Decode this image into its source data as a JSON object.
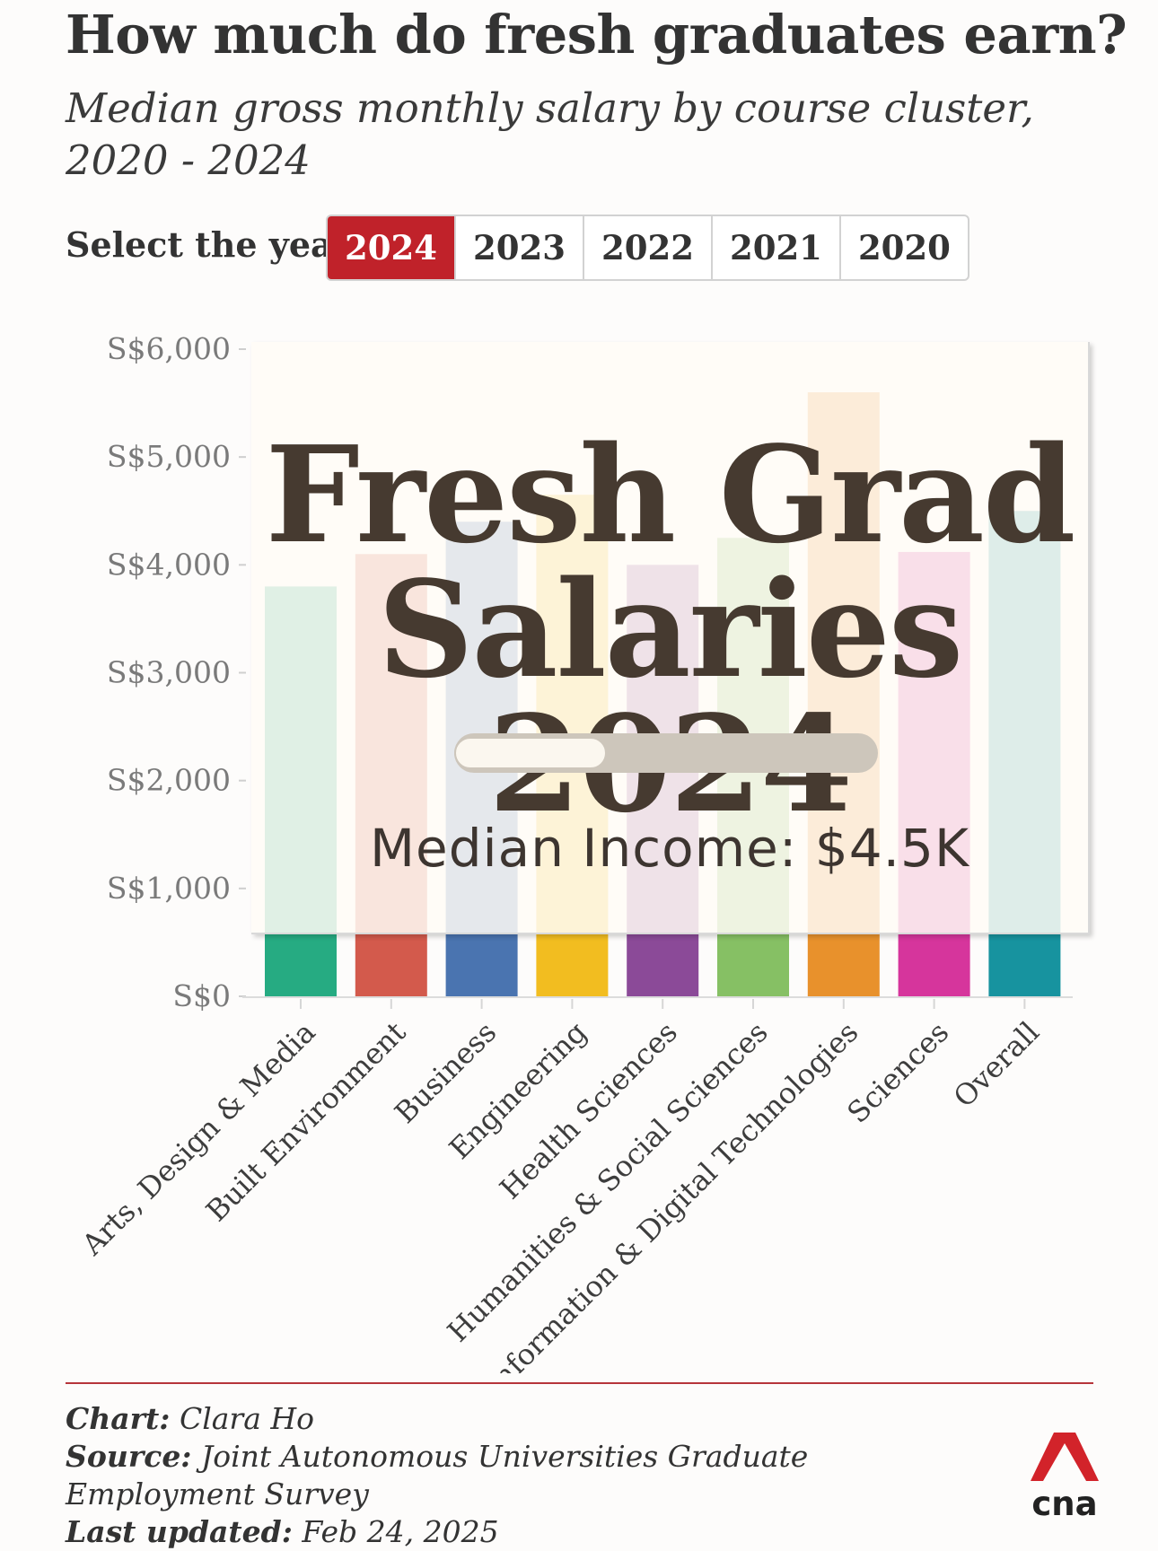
{
  "header": {
    "title": "How much do fresh graduates earn?",
    "subtitle": "Median gross monthly salary by course cluster, 2020 - 2024"
  },
  "year_selector": {
    "label": "Select the year:",
    "options": [
      "2024",
      "2023",
      "2022",
      "2021",
      "2020"
    ],
    "selected": "2024",
    "active_color": "#c0222a"
  },
  "chart_data": {
    "type": "bar",
    "categories": [
      "Arts, Design & Media",
      "Built Environment",
      "Business",
      "Engineering",
      "Health Sciences",
      "Humanities & Social Sciences",
      "Information & Digital Technologies",
      "Sciences",
      "Overall"
    ],
    "values": [
      3800,
      4100,
      4400,
      4650,
      4000,
      4250,
      5600,
      4120,
      4500
    ],
    "colors": [
      "#26ab82",
      "#d35a4c",
      "#4a74b0",
      "#f2bd20",
      "#8b4a98",
      "#86c064",
      "#e8912c",
      "#d6359c",
      "#17939f"
    ],
    "y_ticks": [
      "S$0",
      "S$1,000",
      "S$2,000",
      "S$3,000",
      "S$4,000",
      "S$5,000",
      "S$6,000"
    ],
    "ylim": [
      0,
      6000
    ],
    "grid": false
  },
  "overlay": {
    "title_line1": "Fresh Grad",
    "title_line2": "Salaries 2024",
    "progress": 0.36,
    "income_text": "Median Income: $4.5K"
  },
  "footer": {
    "chart_label": "Chart:",
    "chart_value": "Clara Ho",
    "source_label": "Source:",
    "source_value": "Joint Autonomous Universities Graduate Employment Survey",
    "updated_label": "Last updated:",
    "updated_value": "Feb 24, 2025",
    "logo_text": "cna",
    "logo_color": "#d2232a"
  }
}
